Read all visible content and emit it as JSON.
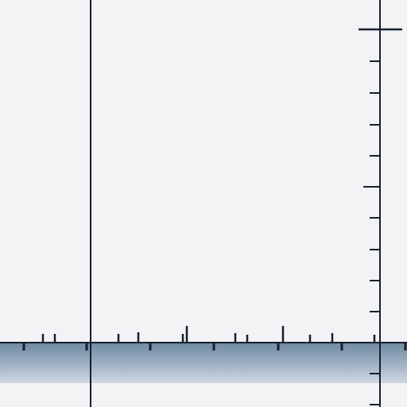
{
  "scene": {
    "description_visible_text": "",
    "colors": {
      "background": "#f3f3f6",
      "ink": "#14202e",
      "band_top": "#6f8aa3",
      "band_bottom": "#c9d3df"
    },
    "elements": {
      "vertical_lines": 2,
      "horizontal_baseline": 1,
      "tick_marks_on_right_axis": 11,
      "tick_marks_on_baseline": 30
    }
  }
}
